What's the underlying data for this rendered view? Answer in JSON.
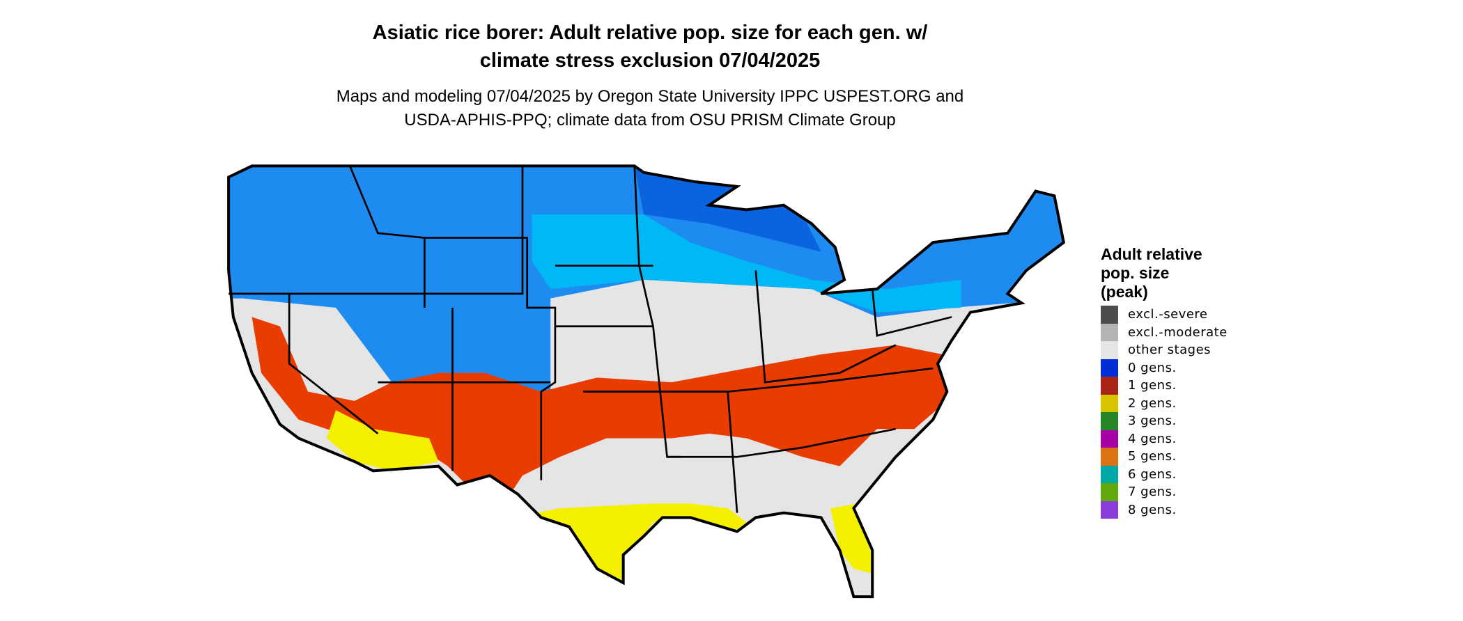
{
  "title": {
    "line1": "Asiatic rice borer: Adult relative pop. size for each gen. w/",
    "line2": "climate stress exclusion 07/04/2025"
  },
  "subtitle": {
    "line1": "Maps and modeling 07/04/2025 by Oregon State University IPPC USPEST.ORG and",
    "line2": "USDA-APHIS-PPQ; climate data from OSU PRISM Climate Group"
  },
  "legend": {
    "title_lines": [
      "Adult relative",
      "pop. size",
      "(peak)"
    ],
    "items": [
      {
        "label": "excl.-severe",
        "color": "#4d4d4d"
      },
      {
        "label": "excl.-moderate",
        "color": "#b3b3b3"
      },
      {
        "label": "other stages",
        "color": "#e5e5e5"
      },
      {
        "label": "0 gens.",
        "color": "#002ed6"
      },
      {
        "label": "1 gens.",
        "color": "#a82416"
      },
      {
        "label": "2 gens.",
        "color": "#d9c400"
      },
      {
        "label": "3 gens.",
        "color": "#268527"
      },
      {
        "label": "4 gens.",
        "color": "#a600a6"
      },
      {
        "label": "5 gens.",
        "color": "#db7314"
      },
      {
        "label": "6 gens.",
        "color": "#00a8a8"
      },
      {
        "label": "7 gens.",
        "color": "#5fa80d"
      },
      {
        "label": "8 gens.",
        "color": "#8a3ddb"
      }
    ]
  },
  "map_colors": {
    "north_blue": "#1e8bf0",
    "dark_blue": "#0a64e0",
    "light_blue": "#00b8f5",
    "red_band": "#e83c00",
    "yellow_south": "#f5f000",
    "other": "#e5e5e5"
  }
}
